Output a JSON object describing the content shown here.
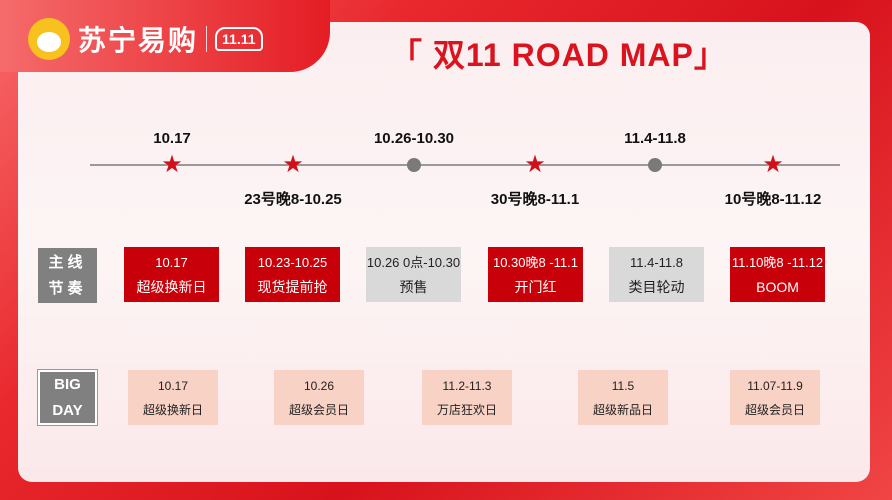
{
  "header": {
    "brand": "苏宁易购",
    "badge": "11.11",
    "title": "「 双11 ROAD MAP」"
  },
  "colors": {
    "accent": "#c8000a",
    "gray": "#d9d9d9",
    "bigday": "#f9d2c6"
  },
  "timeline": [
    {
      "marker": "star",
      "label": "10.17",
      "pos": "above"
    },
    {
      "marker": "star",
      "label": "23号晚8-10.25",
      "pos": "below"
    },
    {
      "marker": "dot",
      "label": "10.26-10.30",
      "pos": "above"
    },
    {
      "marker": "star",
      "label": "30号晚8-11.1",
      "pos": "below"
    },
    {
      "marker": "dot",
      "label": "11.4-11.8",
      "pos": "above"
    },
    {
      "marker": "star",
      "label": "10号晚8-11.12",
      "pos": "below"
    }
  ],
  "mainline": {
    "label1": "主线",
    "label2": "节奏",
    "items": [
      {
        "date": "10.17",
        "name": "超级换新日",
        "style": "red"
      },
      {
        "date": "10.23-10.25",
        "name": "现货提前抢",
        "style": "red"
      },
      {
        "date": "10.26 0点-10.30",
        "name": "预售",
        "style": "gray"
      },
      {
        "date": "10.30晚8 -11.1",
        "name": "开门红",
        "style": "red"
      },
      {
        "date": "11.4-11.8",
        "name": "类目轮动",
        "style": "gray"
      },
      {
        "date": "11.10晚8 -11.12",
        "name": "BOOM",
        "style": "red"
      }
    ]
  },
  "bigday": {
    "label1": "BIG",
    "label2": "DAY",
    "items": [
      {
        "date": "10.17",
        "name": "超级换新日"
      },
      {
        "date": "10.26",
        "name": "超级会员日"
      },
      {
        "date": "11.2-11.3",
        "name": "万店狂欢日"
      },
      {
        "date": "11.5",
        "name": "超级新品日"
      },
      {
        "date": "11.07-11.9",
        "name": "超级会员日"
      }
    ]
  }
}
